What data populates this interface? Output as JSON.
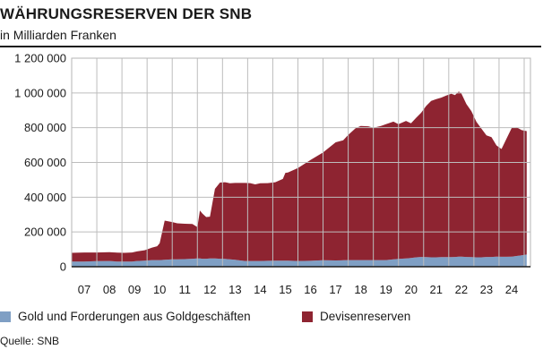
{
  "header": {
    "title": "WÄHRUNGSRESERVEN DER SNB",
    "subtitle": "in Milliarden Franken"
  },
  "footer": {
    "source": "Quelle: SNB"
  },
  "chart_data": {
    "type": "area",
    "stacked": true,
    "title": "WÄHRUNGSRESERVEN DER SNB",
    "subtitle": "in Milliarden Franken",
    "xlabel": "",
    "ylabel": "",
    "ylim": [
      0,
      1200000
    ],
    "xlim": [
      2006.5,
      2024.75
    ],
    "yticks": [
      0,
      200000,
      400000,
      600000,
      800000,
      1000000,
      1200000
    ],
    "ytick_labels": [
      "0",
      "200 000",
      "400 000",
      "600 000",
      "800 000",
      "1 000 000",
      "1 200 000"
    ],
    "xticks": [
      2007,
      2008,
      2009,
      2010,
      2011,
      2012,
      2013,
      2014,
      2015,
      2016,
      2017,
      2018,
      2019,
      2020,
      2021,
      2022,
      2023,
      2024
    ],
    "xtick_labels": [
      "07",
      "08",
      "09",
      "10",
      "11",
      "12",
      "13",
      "14",
      "15",
      "16",
      "17",
      "18",
      "19",
      "20",
      "21",
      "22",
      "23",
      "24"
    ],
    "grid": {
      "horizontal": true,
      "vertical": true
    },
    "legend_position": "bottom",
    "x": [
      2006.5,
      2007.0,
      2007.5,
      2008.0,
      2008.3,
      2008.6,
      2008.9,
      2009.1,
      2009.4,
      2009.7,
      2009.9,
      2010.0,
      2010.2,
      2010.5,
      2010.7,
      2011.0,
      2011.3,
      2011.5,
      2011.6,
      2011.7,
      2011.85,
      2012.0,
      2012.2,
      2012.4,
      2012.6,
      2012.8,
      2013.0,
      2013.2,
      2013.4,
      2013.6,
      2013.8,
      2014.0,
      2014.3,
      2014.6,
      2014.9,
      2015.0,
      2015.1,
      2015.5,
      2016.0,
      2016.5,
      2017.0,
      2017.3,
      2017.5,
      2017.8,
      2018.0,
      2018.3,
      2018.5,
      2018.8,
      2019.0,
      2019.3,
      2019.5,
      2019.8,
      2020.0,
      2020.2,
      2020.4,
      2020.6,
      2020.8,
      2021.0,
      2021.2,
      2021.4,
      2021.6,
      2021.75,
      2021.9,
      2022.0,
      2022.2,
      2022.4,
      2022.6,
      2022.8,
      2023.0,
      2023.2,
      2023.4,
      2023.6,
      2023.8,
      2024.0,
      2024.2,
      2024.4,
      2024.6
    ],
    "series": [
      {
        "name": "Gold und Forderungen aus Goldgeschäften",
        "color": "#7f9fc4",
        "values": [
          30000,
          30000,
          32000,
          33000,
          30000,
          30000,
          30000,
          33000,
          35000,
          38000,
          38000,
          38000,
          40000,
          42000,
          42000,
          44000,
          46000,
          48000,
          48000,
          46000,
          46000,
          48000,
          48000,
          46000,
          45000,
          43000,
          40000,
          36000,
          33000,
          33000,
          33000,
          33000,
          34000,
          35000,
          35000,
          35000,
          35000,
          33000,
          34000,
          37000,
          36000,
          37000,
          38000,
          38000,
          38000,
          38000,
          38000,
          38000,
          38000,
          42000,
          45000,
          48000,
          50000,
          54000,
          56000,
          55000,
          54000,
          54000,
          55000,
          55000,
          55000,
          56000,
          58000,
          58000,
          56000,
          55000,
          54000,
          54000,
          56000,
          56000,
          58000,
          57000,
          57000,
          58000,
          62000,
          66000,
          70000
        ]
      },
      {
        "name": "Devisenreserven",
        "color": "#8e2431",
        "values": [
          50000,
          52000,
          50000,
          51000,
          51000,
          50000,
          52000,
          55000,
          60000,
          72000,
          80000,
          97000,
          225000,
          215000,
          208000,
          203000,
          200000,
          180000,
          275000,
          260000,
          240000,
          240000,
          400000,
          438000,
          441000,
          437000,
          442000,
          446000,
          449000,
          448000,
          441000,
          447000,
          447000,
          451000,
          470000,
          505000,
          507000,
          535000,
          580000,
          620000,
          680000,
          690000,
          720000,
          760000,
          772000,
          770000,
          762000,
          772000,
          782000,
          793000,
          775000,
          791000,
          775000,
          803000,
          830000,
          870000,
          900000,
          910000,
          918000,
          930000,
          940000,
          932000,
          950000,
          940000,
          880000,
          840000,
          780000,
          740000,
          700000,
          690000,
          640000,
          620000,
          680000,
          740000,
          740000,
          720000,
          710000
        ]
      }
    ]
  }
}
